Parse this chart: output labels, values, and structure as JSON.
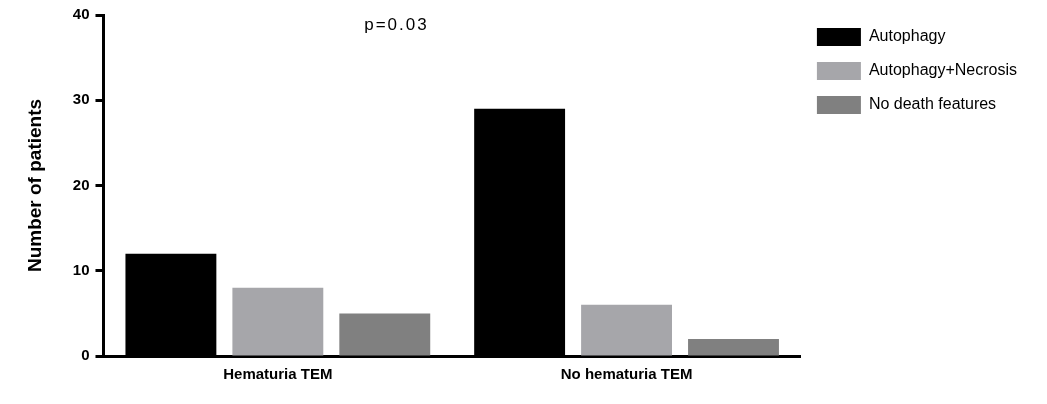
{
  "chart_data": {
    "type": "bar",
    "ylabel": "Number of patients",
    "categories": [
      "Hematuria TEM",
      "No hematuria TEM"
    ],
    "series": [
      {
        "name": "Autophagy",
        "color": "#000000",
        "values": [
          12,
          29
        ]
      },
      {
        "name": "Autophagy+Necrosis",
        "color": "#a6a6aa",
        "values": [
          8,
          6
        ]
      },
      {
        "name": "No death features",
        "color": "#808080",
        "values": [
          5,
          2
        ]
      }
    ],
    "ylim": [
      0,
      40
    ],
    "yticks": [
      0,
      10,
      20,
      30,
      40
    ],
    "grid": false,
    "legend": "top right",
    "annotations": [
      "p=0.03"
    ]
  }
}
